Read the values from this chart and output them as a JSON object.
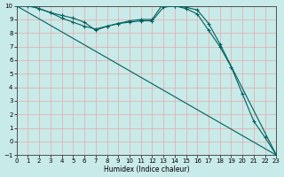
{
  "xlabel": "Humidex (Indice chaleur)",
  "xlim": [
    0,
    23
  ],
  "ylim": [
    -1,
    10
  ],
  "xticks": [
    0,
    1,
    2,
    3,
    4,
    5,
    6,
    7,
    8,
    9,
    10,
    11,
    12,
    13,
    14,
    15,
    16,
    17,
    18,
    19,
    20,
    21,
    22,
    23
  ],
  "yticks": [
    -1,
    0,
    1,
    2,
    3,
    4,
    5,
    6,
    7,
    8,
    9,
    10
  ],
  "bg_color": "#c8eae8",
  "line_color": "#006060",
  "grid_color": "#e8a8a8",
  "line1_x": [
    0,
    1,
    2,
    3,
    4,
    5,
    6,
    7,
    8,
    9,
    10,
    11,
    12,
    13,
    14,
    15,
    16,
    17,
    18,
    23
  ],
  "line1_y": [
    10.0,
    10.1,
    9.8,
    9.5,
    9.3,
    9.1,
    8.8,
    8.2,
    8.5,
    8.7,
    8.9,
    9.0,
    9.0,
    10.2,
    10.0,
    9.9,
    9.7,
    8.7,
    7.2,
    -1.0
  ],
  "line2_x": [
    0,
    23
  ],
  "line2_y": [
    10.0,
    -1.0
  ],
  "line3_x": [
    0,
    1,
    2,
    3,
    4,
    5,
    6,
    7,
    8,
    9,
    10,
    11,
    12,
    13,
    14,
    15,
    16,
    17,
    18,
    19,
    20,
    21,
    22,
    23
  ],
  "line3_y": [
    10.0,
    10.0,
    9.8,
    9.5,
    9.1,
    8.8,
    8.5,
    8.3,
    8.5,
    8.7,
    8.8,
    8.9,
    8.9,
    9.9,
    10.0,
    9.8,
    9.4,
    8.2,
    7.0,
    5.5,
    3.5,
    1.5,
    0.3,
    -1.0
  ]
}
